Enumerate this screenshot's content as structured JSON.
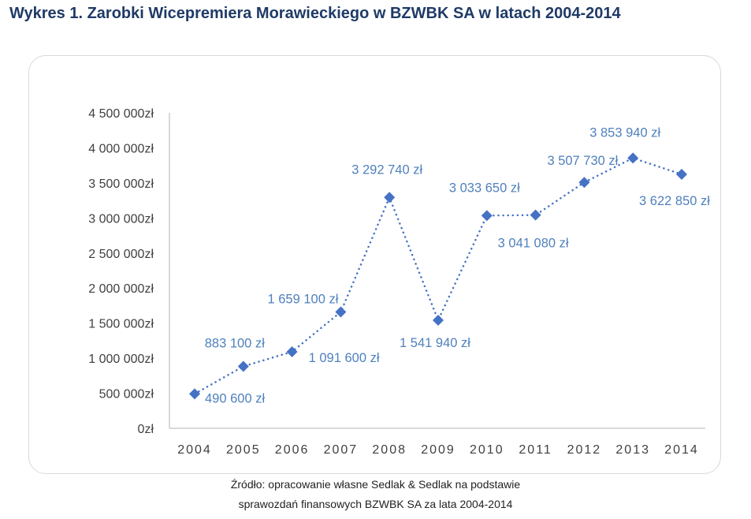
{
  "chart_data": {
    "type": "line",
    "title": "Wykres 1. Zarobki Wicepremiera Morawieckiego w BZWBK SA w latach 2004-2014",
    "categories": [
      "2004",
      "2005",
      "2006",
      "2007",
      "2008",
      "2009",
      "2010",
      "2011",
      "2012",
      "2013",
      "2014"
    ],
    "values": [
      490600,
      883100,
      1091600,
      1659100,
      3292740,
      1541940,
      3033650,
      3041080,
      3507730,
      3853940,
      3622850
    ],
    "data_labels": [
      "490 600 zł",
      "883 100 zł",
      "1 091 600 zł",
      "1 659 100 zł",
      "3 292 740 zł",
      "1 541 940 zł",
      "3 033 650 zł",
      "3 041 080 zł",
      "3 507 730 zł",
      "3 853 940 zł",
      "3 622 850 zł"
    ],
    "yticks": [
      0,
      500000,
      1000000,
      1500000,
      2000000,
      2500000,
      3000000,
      3500000,
      4000000,
      4500000
    ],
    "ytick_labels": [
      "0zł",
      "500 000zł",
      "1 000 000zł",
      "1 500 000zł",
      "2 000 000zł",
      "2 500 000zł",
      "3 000 000zł",
      "3 500 000zł",
      "4 000 000zł",
      "4 500 000zł"
    ],
    "ylim": [
      0,
      4500000
    ],
    "xlabel": "",
    "ylabel": "",
    "grid": false,
    "line_style": "dotted",
    "marker": "diamond",
    "colors": {
      "series": "#4472c4",
      "labels": "#4f81bd",
      "ticks": "#404040",
      "axis": "#d9d9d9"
    }
  },
  "source": {
    "line1": "Źródło: opracowanie własne Sedlak & Sedlak na podstawie",
    "line2": "sprawozdań finansowych BZWBK SA za lata 2004-2014"
  }
}
